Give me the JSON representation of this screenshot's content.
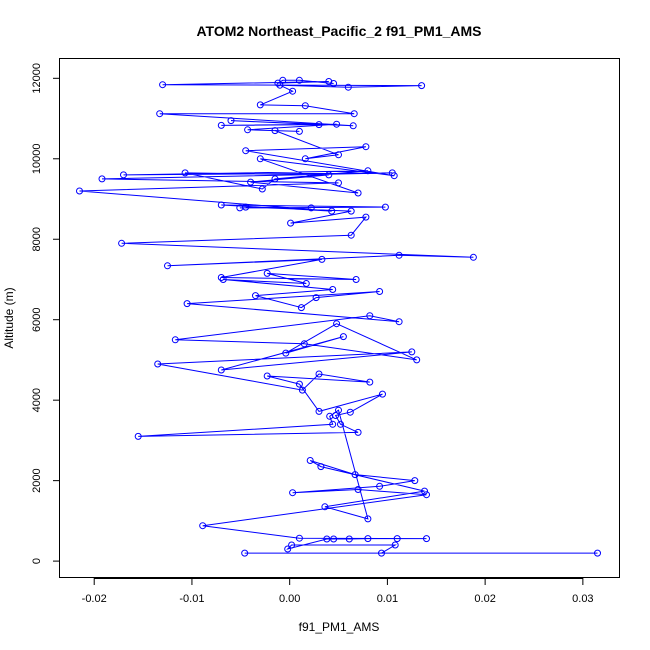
{
  "chart_data": {
    "type": "line",
    "title": "ATOM2 Northeast_Pacific_2 f91_PM1_AMS",
    "xlabel": "f91_PM1_AMS",
    "ylabel": "Altitude (m)",
    "xlim": [
      -0.0235,
      0.0338
    ],
    "ylim": [
      -420,
      12480
    ],
    "xticks": [
      -0.02,
      -0.01,
      0.0,
      0.01,
      0.02,
      0.03
    ],
    "xtick_labels": [
      "-0.02",
      "-0.01",
      "0.00",
      "0.01",
      "0.02",
      "0.03"
    ],
    "yticks": [
      0,
      2000,
      4000,
      6000,
      8000,
      10000,
      12000
    ],
    "ytick_labels": [
      "0",
      "2000",
      "4000",
      "6000",
      "8000",
      "10000",
      "12000"
    ],
    "grid": false,
    "color": "#0000ff",
    "series": [
      {
        "x": [
          0.0315,
          -0.0046,
          0.0094,
          0.0108,
          0.0002,
          -0.0002,
          0.0038,
          0.0045,
          0.0061,
          0.008,
          0.011,
          0.014,
          0.001,
          -0.0089,
          0.014,
          0.007,
          0.0003,
          0.0092,
          0.0128,
          0.0067,
          0.0021,
          0.0032,
          0.0138,
          0.0036,
          0.008,
          0.005,
          0.0041,
          0.0044,
          -0.0155,
          0.007,
          0.0052,
          0.0047,
          0.0062,
          0.0095,
          0.003,
          0.001,
          -0.0023,
          0.0082,
          0.003,
          0.0013,
          -0.0135,
          0.0125,
          -0.007,
          0.0055,
          -0.0004,
          0.0048,
          0.013,
          0.0015,
          -0.0117,
          0.0082,
          0.0112,
          -0.0105,
          0.0092,
          0.0027,
          0.0012,
          -0.0035,
          0.0044,
          -0.0068,
          0.0017,
          -0.0023,
          0.0068,
          -0.007,
          0.0033,
          -0.0125,
          0.0112,
          0.0188,
          -0.0172,
          0.0063,
          0.0078,
          0.0001,
          0.0063,
          -0.0045,
          0.0022,
          -0.0051,
          0.0098,
          -0.007,
          0.0043,
          -0.0215,
          0.005,
          -0.0192,
          0.0105,
          -0.017,
          0.008,
          -0.0015,
          -0.0028,
          -0.0107,
          0.004,
          -0.004,
          0.007,
          -0.003,
          0.0107,
          -0.0045,
          0.0078,
          0.0016,
          0.005,
          -0.0015,
          0.001,
          -0.0043,
          0.0048,
          -0.007,
          0.003,
          -0.006,
          0.0065,
          -0.0133,
          0.0066,
          0.0016,
          -0.003,
          0.0003,
          -0.001,
          0.006,
          0.0135,
          -0.013,
          0.004,
          -0.0012,
          -0.0007,
          0.001,
          0.0045
        ],
        "y": [
          200,
          200,
          200,
          400,
          400,
          300,
          550,
          550,
          550,
          560,
          560,
          560,
          570,
          880,
          1650,
          1780,
          1700,
          1860,
          2000,
          2150,
          2500,
          2350,
          1740,
          1350,
          1050,
          3750,
          3600,
          3400,
          3100,
          3200,
          3400,
          3620,
          3700,
          4150,
          3720,
          4400,
          4600,
          4450,
          4650,
          4250,
          4900,
          5200,
          4750,
          5580,
          5170,
          5900,
          5000,
          5400,
          5500,
          6100,
          5950,
          6400,
          6700,
          6550,
          6300,
          6600,
          6750,
          7000,
          6900,
          7150,
          7000,
          7050,
          7500,
          7340,
          7600,
          7550,
          7900,
          8100,
          8550,
          8400,
          8700,
          8800,
          8780,
          8780,
          8800,
          8850,
          8700,
          9200,
          9400,
          9500,
          9650,
          9600,
          9700,
          9500,
          9250,
          9650,
          9600,
          9420,
          9150,
          10000,
          9580,
          10200,
          10300,
          10000,
          10100,
          10700,
          10680,
          10720,
          10860,
          10830,
          10850,
          10950,
          10820,
          11120,
          11120,
          11320,
          11340,
          11680,
          11830,
          11780,
          11820,
          11840,
          11920,
          11880,
          11950,
          11950,
          11870
        ]
      }
    ]
  }
}
